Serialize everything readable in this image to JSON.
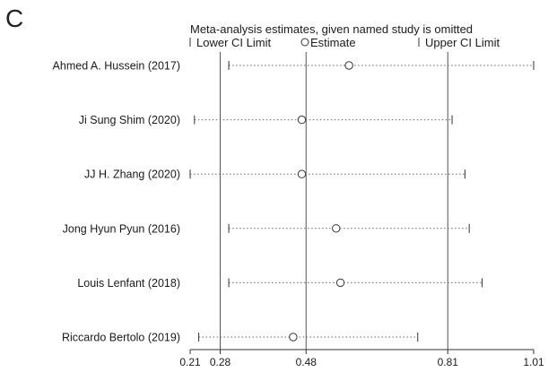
{
  "panel_letter": "C",
  "chart_data": {
    "type": "scatter",
    "title": "Meta-analysis estimates, given named study is omitted",
    "legend": {
      "placement": "top",
      "entries": [
        {
          "symbol": "lower-ci-tick",
          "label": "Lower CI Limit"
        },
        {
          "symbol": "circle",
          "label": "Estimate"
        },
        {
          "symbol": "upper-ci-tick",
          "label": "Upper CI Limit"
        }
      ]
    },
    "xlim": [
      0.21,
      1.01
    ],
    "x_ticks": [
      0.21,
      0.28,
      0.48,
      0.81,
      1.01
    ],
    "x_tick_labels": [
      "0.21",
      "0.28",
      "0.48",
      "0.81",
      "1.01"
    ],
    "reference_lines": [
      0.28,
      0.48,
      0.81
    ],
    "grid": false,
    "studies": [
      {
        "label": "Ahmed A. Hussein  (2017)",
        "estimate": 0.58,
        "lower": 0.3,
        "upper": 1.01
      },
      {
        "label": "Ji Sung Shim  (2020)",
        "estimate": 0.47,
        "lower": 0.22,
        "upper": 0.82
      },
      {
        "label": "JJ H. Zhang  (2020)",
        "estimate": 0.47,
        "lower": 0.21,
        "upper": 0.85
      },
      {
        "label": "Jong Hyun Pyun  (2016)",
        "estimate": 0.55,
        "lower": 0.3,
        "upper": 0.86
      },
      {
        "label": "Louis Lenfant  (2018)",
        "estimate": 0.56,
        "lower": 0.3,
        "upper": 0.89
      },
      {
        "label": "Riccardo Bertolo  (2019)",
        "estimate": 0.45,
        "lower": 0.23,
        "upper": 0.74
      }
    ]
  }
}
